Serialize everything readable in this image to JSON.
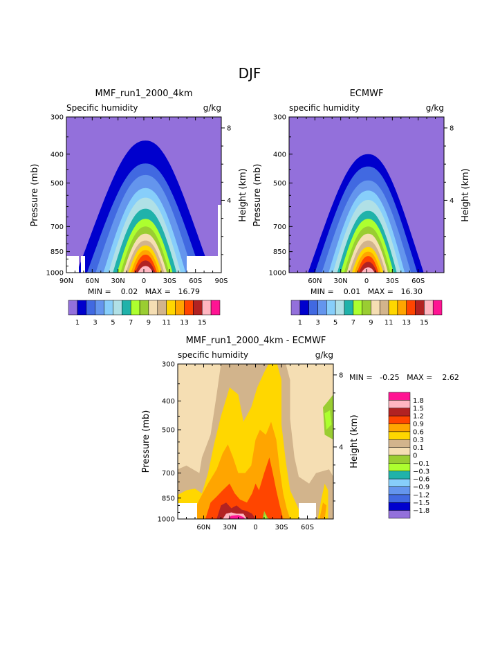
{
  "page": {
    "title": "DJF"
  },
  "panels": {
    "mmf": {
      "title": "MMF_run1_2000_4km",
      "left_label": "Specific humidity",
      "units": "g/kg",
      "ylabel_left": "Pressure (mb)",
      "ylabel_right": "Height (km)",
      "min_max": "MIN =    0.02   MAX =   16.79"
    },
    "ecmwf": {
      "title": "ECMWF",
      "left_label": "specific humidity",
      "units": "g/kg",
      "ylabel_left": "Pressure (mb)",
      "ylabel_right": "Height (km)",
      "min_max": "MIN =    0.01   MAX =   16.30"
    },
    "diff": {
      "title": "MMF_run1_2000_4km - ECMWF",
      "left_label": "specific humidity",
      "units": "g/kg",
      "ylabel_left": "Pressure (mb)",
      "ylabel_right": "Height (km)",
      "min_max": "MIN =   -0.25   MAX =    2.62"
    }
  },
  "chart_data": [
    {
      "type": "heatmap",
      "title": "MMF_run1_2000_4km",
      "variable": "Specific humidity",
      "units": "g/kg",
      "xlabel": "",
      "ylabel": "Pressure (mb)",
      "ylabel_right": "Height (km)",
      "x_ticks": [
        "90N",
        "60N",
        "30N",
        "0",
        "30S",
        "60S",
        "90S"
      ],
      "x_range": [
        90,
        -90
      ],
      "y_ticks": [
        "300",
        "400",
        "500",
        "700",
        "850",
        "1000"
      ],
      "y_range_mb": [
        1000,
        300
      ],
      "right_ticks": [
        "4",
        "8"
      ],
      "contour_levels": [
        1,
        2,
        3,
        4,
        5,
        6,
        7,
        8,
        9,
        10,
        11,
        12,
        13,
        14,
        15
      ],
      "top_pressure_by_level": [
        360,
        430,
        470,
        520,
        560,
        610,
        660,
        700,
        740,
        780,
        810,
        840,
        870,
        910,
        950
      ],
      "half_width_deg_at_1000": [
        80,
        68,
        58,
        49,
        43,
        38,
        33,
        29,
        26,
        23,
        20,
        17,
        14,
        12,
        9
      ],
      "center_lat": -2,
      "min": 0.02,
      "max": 16.79
    },
    {
      "type": "heatmap",
      "title": "ECMWF",
      "variable": "specific humidity",
      "units": "g/kg",
      "xlabel": "",
      "ylabel": "Pressure (mb)",
      "ylabel_right": "Height (km)",
      "x_ticks": [
        "60N",
        "30N",
        "0",
        "30S",
        "60S"
      ],
      "x_range": [
        90,
        -90
      ],
      "y_ticks": [
        "300",
        "400",
        "500",
        "700",
        "850",
        "1000"
      ],
      "y_range_mb": [
        1000,
        300
      ],
      "right_ticks": [
        "4",
        "8"
      ],
      "contour_levels": [
        1,
        2,
        3,
        4,
        5,
        6,
        7,
        8,
        9,
        10,
        11,
        12,
        13,
        14,
        15
      ],
      "top_pressure_by_level": [
        400,
        440,
        490,
        530,
        570,
        620,
        660,
        700,
        740,
        780,
        820,
        850,
        880,
        920,
        960
      ],
      "half_width_deg_at_1000": [
        70,
        62,
        54,
        46,
        41,
        36,
        32,
        28,
        25,
        22,
        19,
        16,
        13,
        11,
        8
      ],
      "center_lat": -2,
      "min": 0.01,
      "max": 16.3
    },
    {
      "type": "heatmap",
      "title": "MMF_run1_2000_4km - ECMWF",
      "variable": "specific humidity",
      "units": "g/kg",
      "xlabel": "",
      "ylabel": "Pressure (mb)",
      "ylabel_right": "Height (km)",
      "x_ticks": [
        "60N",
        "30N",
        "0",
        "30S",
        "60S"
      ],
      "x_range": [
        90,
        -90
      ],
      "y_ticks": [
        "300",
        "400",
        "500",
        "700",
        "850",
        "1000"
      ],
      "y_range_mb": [
        1000,
        300
      ],
      "right_ticks": [
        "4",
        "8"
      ],
      "contour_levels": [
        -1.8,
        -1.5,
        -1.2,
        -0.9,
        -0.6,
        -0.3,
        -0.1,
        0,
        0.1,
        0.3,
        0.6,
        0.9,
        1.2,
        1.5,
        1.8
      ],
      "min": -0.25,
      "max": 2.62
    }
  ],
  "colorbars": {
    "absolute": {
      "colors": [
        "#9370db",
        "#0000cd",
        "#4169e1",
        "#6495ed",
        "#87cefa",
        "#b0e0e6",
        "#20b2aa",
        "#adff2f",
        "#9acd32",
        "#f5deb3",
        "#d2b48c",
        "#ffd700",
        "#ffa500",
        "#ff4500",
        "#b22222",
        "#ffb6c1",
        "#ff1493"
      ],
      "labels": [
        "1",
        "3",
        "5",
        "7",
        "9",
        "11",
        "13",
        "15"
      ]
    },
    "difference": {
      "colors": [
        "#9370db",
        "#0000cd",
        "#4169e1",
        "#6495ed",
        "#87cefa",
        "#20b2aa",
        "#adff2f",
        "#9acd32",
        "#f5deb3",
        "#d2b48c",
        "#ffd700",
        "#ffa500",
        "#ff4500",
        "#b22222",
        "#ffb6c1",
        "#ff1493"
      ],
      "labels": [
        "1.8",
        "1.5",
        "1.2",
        "0.9",
        "0.6",
        "0.3",
        "0.1",
        "0",
        "−0.1",
        "−0.3",
        "−0.6",
        "−0.9",
        "−1.2",
        "−1.5",
        "−1.8"
      ]
    }
  }
}
